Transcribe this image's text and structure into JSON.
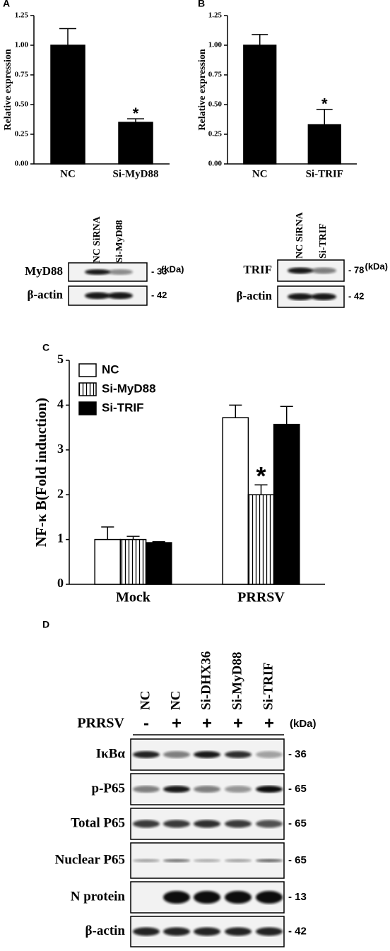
{
  "chart_data": [
    {
      "type": "bar",
      "panel": "A",
      "ylabel": "Relative expression",
      "categories": [
        "NC",
        "Si-MyD88"
      ],
      "values": [
        1.0,
        0.35
      ],
      "errors": [
        0.14,
        0.03
      ],
      "color": "#000000",
      "ylim": [
        0,
        1.25
      ],
      "yticks": [
        {
          "value": 0,
          "label": "0.00"
        },
        {
          "value": 0.25,
          "label": "0.25"
        },
        {
          "value": 0.5,
          "label": "0.50"
        },
        {
          "value": 0.75,
          "label": "0.75"
        },
        {
          "value": 1,
          "label": "1.00"
        },
        {
          "value": 1.25,
          "label": "1.25"
        }
      ],
      "annotations": [
        {
          "text": "*",
          "category": "Si-MyD88"
        }
      ]
    },
    {
      "type": "bar",
      "panel": "B",
      "ylabel": "Relative expression",
      "categories": [
        "NC",
        "Si-TRIF"
      ],
      "values": [
        1.0,
        0.33
      ],
      "errors": [
        0.09,
        0.13
      ],
      "color": "#000000",
      "ylim": [
        0,
        1.25
      ],
      "yticks": [
        {
          "value": 0,
          "label": "0.00"
        },
        {
          "value": 0.25,
          "label": "0.25"
        },
        {
          "value": 0.5,
          "label": "0.50"
        },
        {
          "value": 0.75,
          "label": "0.75"
        },
        {
          "value": 1,
          "label": "1.00"
        },
        {
          "value": 1.25,
          "label": "1.25"
        }
      ],
      "annotations": [
        {
          "text": "*",
          "category": "Si-TRIF"
        }
      ]
    },
    {
      "type": "bar",
      "panel": "C",
      "ylabel": "NF-κ B(Fold induction)",
      "categories": [
        "Mock",
        "PRRSV"
      ],
      "series": [
        {
          "name": "NC",
          "color": "#ffffff",
          "values": [
            1.0,
            3.72
          ],
          "errors": [
            0.28,
            0.28
          ]
        },
        {
          "name": "Si-MyD88",
          "color": "#ffffff",
          "hatch": true,
          "values": [
            1.0,
            2.0
          ],
          "errors": [
            0.07,
            0.22
          ]
        },
        {
          "name": "Si-TRIF",
          "color": "#000000",
          "values": [
            0.93,
            3.57
          ],
          "errors": [
            0.02,
            0.4
          ]
        }
      ],
      "ylim": [
        0,
        5
      ],
      "yticks": [
        0,
        1,
        2,
        3,
        4,
        5
      ],
      "legend": "top-left",
      "annotations": [
        {
          "text": "*",
          "category": "PRRSV",
          "series": "Si-MyD88"
        }
      ]
    }
  ],
  "blot_a": {
    "lanes": [
      "NC SiRNA",
      "Si-MyD88"
    ],
    "unit": "(kDa)",
    "rows": [
      {
        "label": "MyD88",
        "size": "- 33"
      },
      {
        "label": "β-actin",
        "size": "- 42"
      }
    ]
  },
  "blot_b": {
    "lanes": [
      "NC SiRNA",
      "Si-TRIF"
    ],
    "unit": "(kDa)",
    "rows": [
      {
        "label": "TRIF",
        "size": "- 78"
      },
      {
        "label": "β-actin",
        "size": "- 42"
      }
    ]
  },
  "blot_d": {
    "panel": "D",
    "lanes": [
      "NC",
      "NC",
      "Si-DHX36",
      "Si-MyD88",
      "Si-TRIF"
    ],
    "unit": "(kDa)",
    "treatment": {
      "label": "PRRSV",
      "marks": [
        "-",
        "+",
        "+",
        "+",
        "+"
      ]
    },
    "rows": [
      {
        "label": "IκBα",
        "size": "- 36"
      },
      {
        "label": "p-P65",
        "size": "- 65"
      },
      {
        "label": "Total P65",
        "size": "- 65"
      },
      {
        "label": "Nuclear P65",
        "size": "- 65"
      },
      {
        "label": "N protein",
        "size": "- 13"
      },
      {
        "label": "β-actin",
        "size": "- 42"
      }
    ]
  }
}
